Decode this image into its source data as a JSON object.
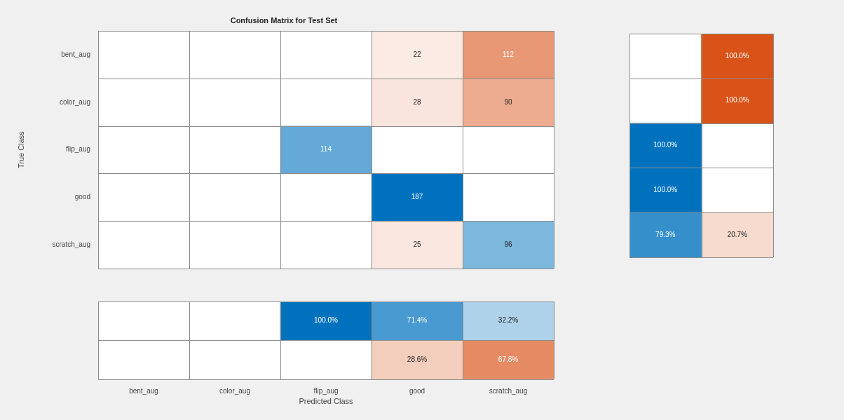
{
  "chart_data": [
    {
      "type": "heatmap",
      "title": "Confusion Matrix for Test Set",
      "ylabel": "True Class",
      "categories": [
        null,
        null,
        null,
        null,
        null
      ],
      "y_categories": [
        "bent_aug",
        "color_aug",
        "flip_aug",
        "good",
        "scratch_aug"
      ],
      "tick_labels": "y",
      "data_labels": true,
      "cells": [
        [
          null,
          null,
          null,
          22,
          112
        ],
        [
          null,
          null,
          null,
          28,
          90
        ],
        [
          null,
          null,
          114,
          null,
          null
        ],
        [
          null,
          null,
          null,
          187,
          null
        ],
        [
          null,
          null,
          null,
          25,
          96
        ]
      ]
    },
    {
      "type": "heatmap",
      "categories": [
        null,
        null
      ],
      "y_categories": [
        null,
        null,
        null,
        null,
        null
      ],
      "tick_labels": false,
      "cells": [
        [
          null,
          100.0
        ],
        [
          null,
          100.0
        ],
        [
          100.0,
          null
        ],
        [
          100.0,
          null
        ],
        [
          79.3,
          20.7
        ]
      ],
      "cell_labels": [
        [
          null,
          "100.0%"
        ],
        [
          null,
          "100.0%"
        ],
        [
          "100.0%",
          null
        ],
        [
          "100.0%",
          null
        ],
        [
          "79.3%",
          "20.7%"
        ]
      ]
    },
    {
      "type": "heatmap",
      "xlabel": "Predicted Class",
      "categories": [
        "bent_aug",
        "color_aug",
        "flip_aug",
        "good",
        "scratch_aug"
      ],
      "y_categories": [
        null,
        null
      ],
      "tick_labels": "x",
      "cells": [
        [
          null,
          null,
          100.0,
          71.4,
          32.2
        ],
        [
          null,
          null,
          null,
          28.6,
          67.8
        ]
      ],
      "cell_labels": [
        [
          null,
          null,
          "100.0%",
          "71.4%",
          "32.2%"
        ],
        [
          null,
          null,
          null,
          "28.6%",
          "67.8%"
        ]
      ]
    }
  ]
}
